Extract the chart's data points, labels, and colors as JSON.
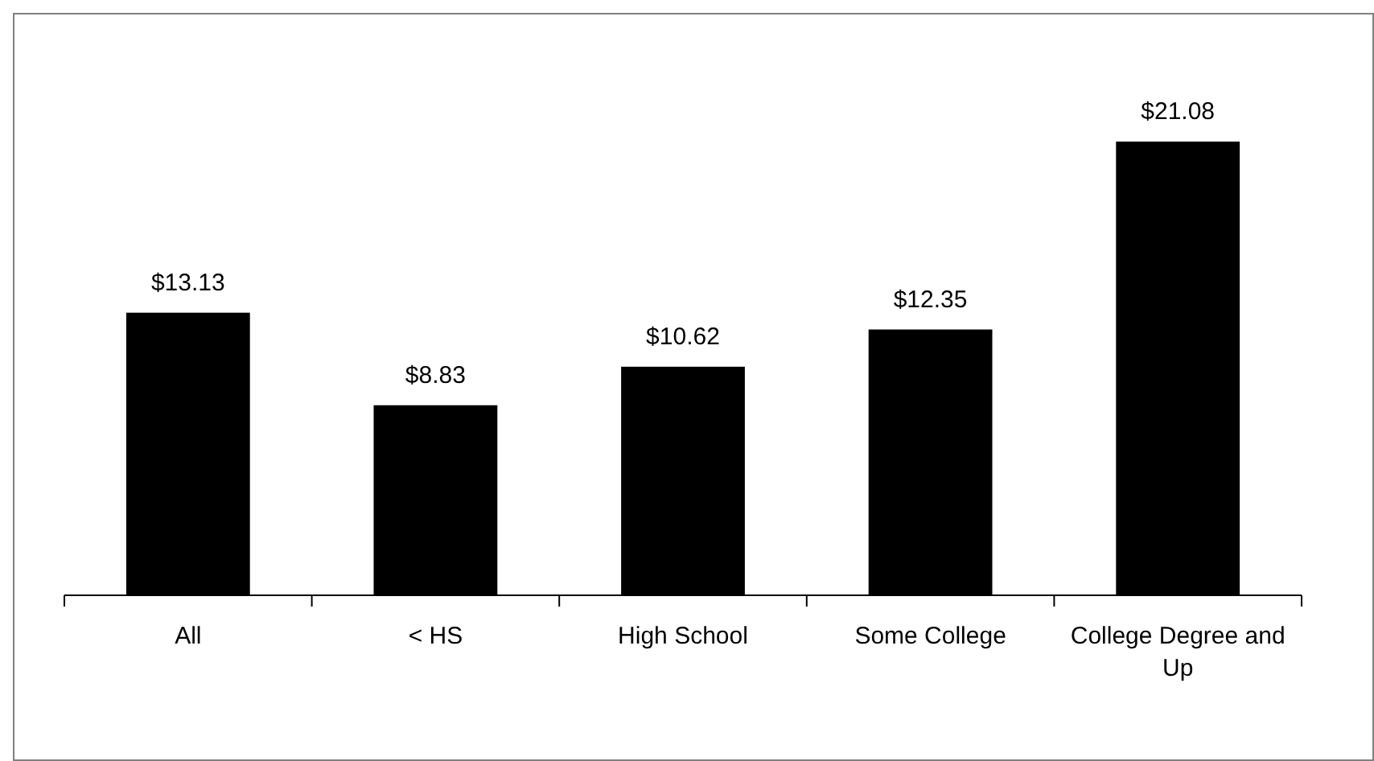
{
  "chart_data": {
    "type": "bar",
    "categories": [
      "All",
      "< HS",
      "High School",
      "Some College",
      "College Degree and Up"
    ],
    "values": [
      13.13,
      8.83,
      10.62,
      12.35,
      21.08
    ],
    "value_labels": [
      "$13.13",
      "$8.83",
      "$10.62",
      "$12.35",
      "$21.08"
    ],
    "color": "#000000"
  }
}
